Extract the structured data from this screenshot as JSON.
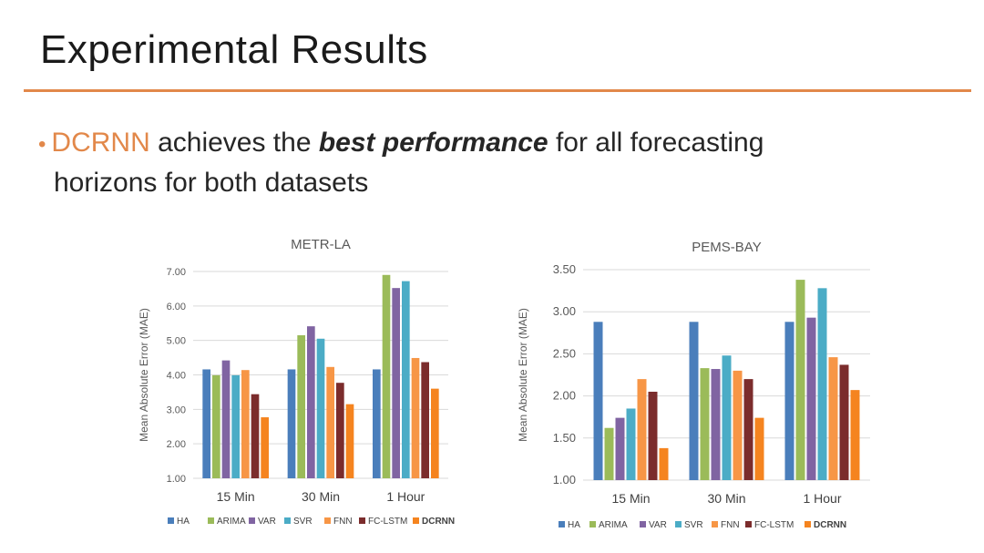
{
  "slide": {
    "title": "Experimental Results",
    "bullet": {
      "highlight": "DCRNN",
      "text_a": " achieves the ",
      "emphasis": "best performance",
      "text_b": " for all forecasting",
      "line2": "horizons for both datasets"
    }
  },
  "colors": {
    "HA": "#4a7ebb",
    "ARIMA": "#9bbb59",
    "VAR": "#8064a2",
    "SVR": "#4bacc6",
    "FNN": "#f79646",
    "FC-LSTM": "#7b2c2c",
    "DCRNN": "#f5841f",
    "accent": "#e2884a"
  },
  "chart_data": [
    {
      "type": "bar",
      "title": "METR-LA",
      "ylabel": "Mean Absolute Error (MAE)",
      "xlabel": "",
      "ylim": [
        1.0,
        7.0
      ],
      "yticks": [
        "1.00",
        "2.00",
        "3.00",
        "4.00",
        "5.00",
        "6.00",
        "7.00"
      ],
      "categories": [
        "15 Min",
        "30 Min",
        "1 Hour"
      ],
      "series": [
        {
          "name": "HA",
          "values": [
            4.16,
            4.16,
            4.16
          ]
        },
        {
          "name": "ARIMA",
          "values": [
            3.99,
            5.15,
            6.9
          ]
        },
        {
          "name": "VAR",
          "values": [
            4.42,
            5.41,
            6.52
          ]
        },
        {
          "name": "SVR",
          "values": [
            3.99,
            5.05,
            6.72
          ]
        },
        {
          "name": "FNN",
          "values": [
            4.14,
            4.23,
            4.49
          ]
        },
        {
          "name": "FC-LSTM",
          "values": [
            3.44,
            3.77,
            4.37
          ]
        },
        {
          "name": "DCRNN",
          "values": [
            2.77,
            3.15,
            3.6
          ]
        }
      ],
      "legend_position": "bottom"
    },
    {
      "type": "bar",
      "title": "PEMS-BAY",
      "ylabel": "Mean Absolute  Error (MAE)",
      "xlabel": "",
      "ylim": [
        1.0,
        3.5
      ],
      "yticks": [
        "1.00",
        "1.50",
        "2.00",
        "2.50",
        "3.00",
        "3.50"
      ],
      "categories": [
        "15 Min",
        "30 Min",
        "1 Hour"
      ],
      "series": [
        {
          "name": "HA",
          "values": [
            2.88,
            2.88,
            2.88
          ]
        },
        {
          "name": "ARIMA",
          "values": [
            1.62,
            2.33,
            3.38
          ]
        },
        {
          "name": "VAR",
          "values": [
            1.74,
            2.32,
            2.93
          ]
        },
        {
          "name": "SVR",
          "values": [
            1.85,
            2.48,
            3.28
          ]
        },
        {
          "name": "FNN",
          "values": [
            2.2,
            2.3,
            2.46
          ]
        },
        {
          "name": "FC-LSTM",
          "values": [
            2.05,
            2.2,
            2.37
          ]
        },
        {
          "name": "DCRNN",
          "values": [
            1.38,
            1.74,
            2.07
          ]
        }
      ],
      "legend_position": "bottom"
    }
  ]
}
